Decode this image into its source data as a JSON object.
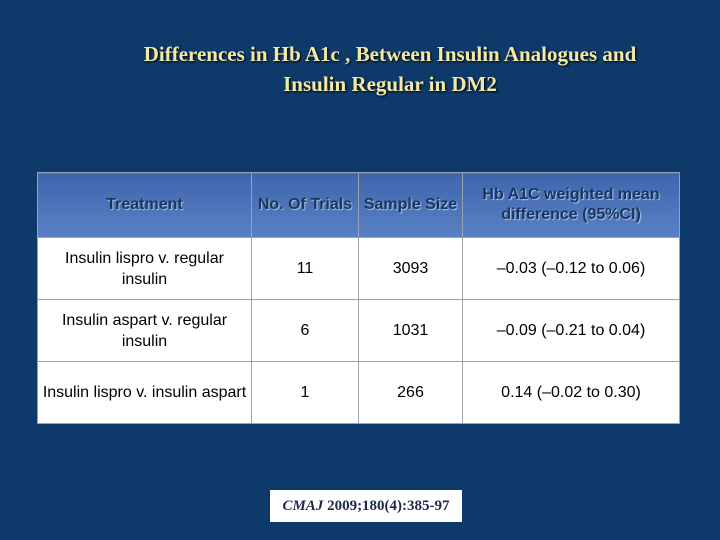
{
  "title": [
    "Differences in Hb A1c , Between Insulin Analogues and",
    "Insulin Regular in DM2"
  ],
  "table": {
    "header": [
      "Treatment",
      "No. Of Trials",
      "Sample Size",
      "Hb A1C weighted mean difference (95%CI)"
    ],
    "rows": [
      [
        "Insulin lispro v. regular insulin",
        "11",
        "3093",
        "–0.03 (–0.12 to 0.06)"
      ],
      [
        "Insulin aspart v. regular insulin",
        "6",
        "1031",
        "–0.09 (–0.21 to 0.04)"
      ],
      [
        "Insulin lispro v. insulin aspart",
        "1",
        "266",
        "0.14 (–0.02 to 0.30)"
      ]
    ]
  },
  "citation": {
    "journal": "CMAJ",
    "reference": "2009;180(4):385-97"
  }
}
